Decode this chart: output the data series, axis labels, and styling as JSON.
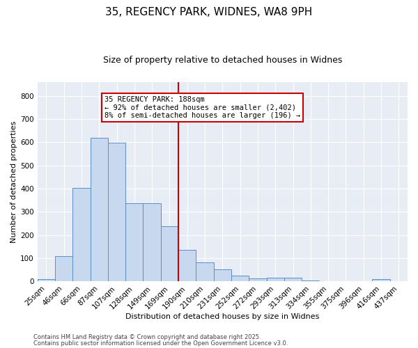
{
  "title_line1": "35, REGENCY PARK, WIDNES, WA8 9PH",
  "title_line2": "Size of property relative to detached houses in Widnes",
  "xlabel": "Distribution of detached houses by size in Widnes",
  "ylabel": "Number of detached properties",
  "bar_labels": [
    "25sqm",
    "46sqm",
    "66sqm",
    "87sqm",
    "107sqm",
    "128sqm",
    "149sqm",
    "169sqm",
    "190sqm",
    "210sqm",
    "231sqm",
    "252sqm",
    "272sqm",
    "293sqm",
    "313sqm",
    "334sqm",
    "355sqm",
    "375sqm",
    "396sqm",
    "416sqm",
    "437sqm"
  ],
  "bar_values": [
    8,
    108,
    404,
    620,
    597,
    336,
    336,
    238,
    135,
    80,
    52,
    25,
    13,
    16,
    15,
    3,
    0,
    0,
    0,
    8,
    0
  ],
  "bar_color": "#c8d9ef",
  "bar_edge_color": "#5a8ec8",
  "vline_index": 8,
  "vline_color": "#cc0000",
  "ylim": [
    0,
    860
  ],
  "yticks": [
    0,
    100,
    200,
    300,
    400,
    500,
    600,
    700,
    800
  ],
  "annotation_text": "35 REGENCY PARK: 188sqm\n← 92% of detached houses are smaller (2,402)\n8% of semi-detached houses are larger (196) →",
  "annotation_box_color": "#cc0000",
  "plot_bg_color": "#e8edf5",
  "fig_bg_color": "#ffffff",
  "grid_color": "#ffffff",
  "footnote1": "Contains HM Land Registry data © Crown copyright and database right 2025.",
  "footnote2": "Contains public sector information licensed under the Open Government Licence v3.0.",
  "title1_fontsize": 11,
  "title2_fontsize": 9,
  "axis_label_fontsize": 8,
  "tick_fontsize": 7.5,
  "ann_fontsize": 7.5,
  "footnote_fontsize": 6
}
